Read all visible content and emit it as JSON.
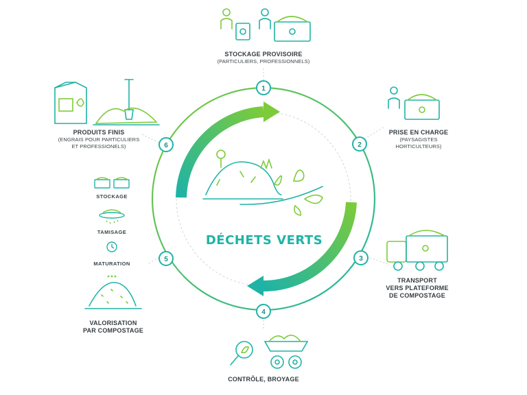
{
  "center": {
    "title": "DÉCHETS VERTS"
  },
  "steps": [
    {
      "num": "1",
      "title": "STOCKAGE PROVISOIRE",
      "subtitle": "(PARTICULIERS, PROFESSIONNELS)"
    },
    {
      "num": "2",
      "title": "PRISE EN CHARGE",
      "subtitle_lines": [
        "(PAYSAGISTES",
        "HORTICULTEURS)"
      ]
    },
    {
      "num": "3",
      "title_lines": [
        "TRANSPORT",
        "VERS PLATEFORME",
        "DE COMPOSTAGE"
      ]
    },
    {
      "num": "4",
      "title": "CONTRÔLE, BROYAGE"
    },
    {
      "num": "5",
      "title_lines": [
        "VALORISATION",
        "PAR COMPOSTAGE"
      ],
      "substeps": [
        "STOCKAGE",
        "TAMISAGE",
        "MATURATION"
      ]
    },
    {
      "num": "6",
      "title": "PRODUITS FINIS",
      "subtitle_lines": [
        "(ENGRAIS POUR PARTICULIERS",
        "ET PROFESSIONELS)"
      ]
    }
  ],
  "colors": {
    "teal": "#1fb3a6",
    "green": "#7ccb3a",
    "dark": "#333c40"
  },
  "icons": [
    "people-with-bins-icon",
    "worker-with-crate-icon",
    "truck-icon",
    "magnifier-leaf-icon",
    "shredder-gears-icon",
    "compost-heap-icon",
    "crates-icon",
    "sieve-icon",
    "clock-icon",
    "fertilizer-bag-icon",
    "shovel-pile-icon",
    "green-waste-pile-icon"
  ]
}
